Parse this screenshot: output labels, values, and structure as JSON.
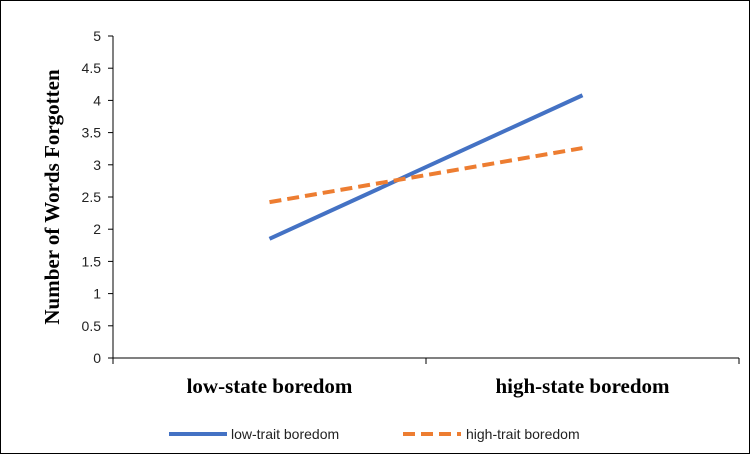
{
  "chart_data": {
    "type": "line",
    "title": "",
    "xlabel": "",
    "ylabel": "Number of Words Forgotten",
    "categories": [
      "low-state boredom",
      "high-state boredom"
    ],
    "ylim": [
      0,
      5
    ],
    "yticks": [
      "0",
      "0.5",
      "1",
      "1.5",
      "2",
      "2.5",
      "3",
      "3.5",
      "4",
      "4.5",
      "5"
    ],
    "grid": false,
    "legend_position": "bottom",
    "series": [
      {
        "name": "low-trait boredom",
        "values": [
          1.85,
          4.08
        ],
        "color": "#4472C4",
        "dash": "solid"
      },
      {
        "name": "high-trait boredom",
        "values": [
          2.42,
          3.26
        ],
        "color": "#ED7D31",
        "dash": "dashed"
      }
    ]
  }
}
